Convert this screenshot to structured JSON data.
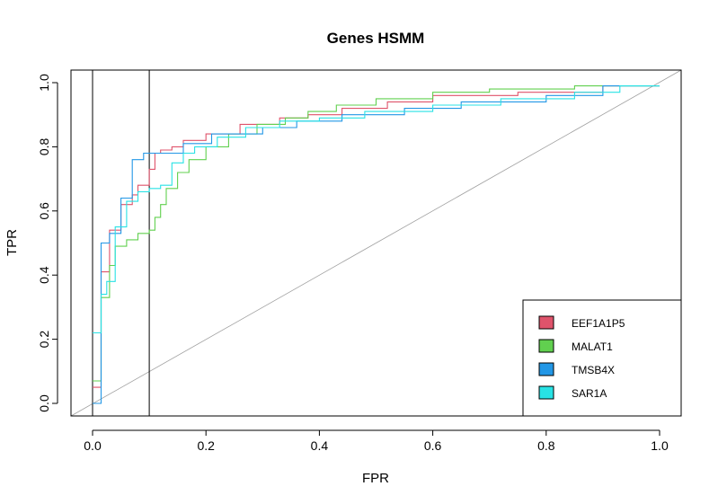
{
  "chart_data": {
    "type": "line",
    "title": "Genes HSMM",
    "xlabel": "FPR",
    "ylabel": "TPR",
    "xlim": [
      0,
      1
    ],
    "ylim": [
      0,
      1
    ],
    "x_ticks": [
      "0.0",
      "0.2",
      "0.4",
      "0.6",
      "0.8",
      "1.0"
    ],
    "y_ticks": [
      "0.0",
      "0.2",
      "0.4",
      "0.6",
      "0.8",
      "1.0"
    ],
    "reference_diagonal": true,
    "vertical_lines_x": [
      0.0,
      0.1
    ],
    "grid": false,
    "legend_position": "bottom-right",
    "series": [
      {
        "name": "EEF1A1P5",
        "color": "#DF536B",
        "points": [
          [
            0,
            0.05
          ],
          [
            0.015,
            0.05
          ],
          [
            0.015,
            0.41
          ],
          [
            0.03,
            0.41
          ],
          [
            0.03,
            0.54
          ],
          [
            0.05,
            0.54
          ],
          [
            0.05,
            0.62
          ],
          [
            0.07,
            0.62
          ],
          [
            0.07,
            0.65
          ],
          [
            0.08,
            0.65
          ],
          [
            0.08,
            0.68
          ],
          [
            0.1,
            0.68
          ],
          [
            0.1,
            0.73
          ],
          [
            0.11,
            0.73
          ],
          [
            0.11,
            0.78
          ],
          [
            0.12,
            0.78
          ],
          [
            0.12,
            0.79
          ],
          [
            0.14,
            0.79
          ],
          [
            0.14,
            0.8
          ],
          [
            0.16,
            0.8
          ],
          [
            0.16,
            0.82
          ],
          [
            0.2,
            0.82
          ],
          [
            0.2,
            0.84
          ],
          [
            0.26,
            0.84
          ],
          [
            0.26,
            0.87
          ],
          [
            0.33,
            0.87
          ],
          [
            0.33,
            0.89
          ],
          [
            0.38,
            0.89
          ],
          [
            0.38,
            0.9
          ],
          [
            0.44,
            0.9
          ],
          [
            0.44,
            0.92
          ],
          [
            0.52,
            0.92
          ],
          [
            0.52,
            0.94
          ],
          [
            0.6,
            0.94
          ],
          [
            0.6,
            0.96
          ],
          [
            0.75,
            0.96
          ],
          [
            0.75,
            0.97
          ],
          [
            0.9,
            0.97
          ],
          [
            0.9,
            0.99
          ],
          [
            1,
            0.99
          ]
        ]
      },
      {
        "name": "MALAT1",
        "color": "#61D04F",
        "points": [
          [
            0,
            0.07
          ],
          [
            0.015,
            0.07
          ],
          [
            0.015,
            0.33
          ],
          [
            0.03,
            0.33
          ],
          [
            0.03,
            0.43
          ],
          [
            0.04,
            0.43
          ],
          [
            0.04,
            0.49
          ],
          [
            0.06,
            0.49
          ],
          [
            0.06,
            0.51
          ],
          [
            0.08,
            0.51
          ],
          [
            0.08,
            0.53
          ],
          [
            0.1,
            0.53
          ],
          [
            0.1,
            0.54
          ],
          [
            0.11,
            0.54
          ],
          [
            0.11,
            0.58
          ],
          [
            0.12,
            0.58
          ],
          [
            0.12,
            0.62
          ],
          [
            0.13,
            0.62
          ],
          [
            0.13,
            0.67
          ],
          [
            0.15,
            0.67
          ],
          [
            0.15,
            0.72
          ],
          [
            0.17,
            0.72
          ],
          [
            0.17,
            0.76
          ],
          [
            0.2,
            0.76
          ],
          [
            0.2,
            0.8
          ],
          [
            0.24,
            0.8
          ],
          [
            0.24,
            0.84
          ],
          [
            0.29,
            0.84
          ],
          [
            0.29,
            0.87
          ],
          [
            0.34,
            0.87
          ],
          [
            0.34,
            0.89
          ],
          [
            0.38,
            0.89
          ],
          [
            0.38,
            0.91
          ],
          [
            0.43,
            0.91
          ],
          [
            0.43,
            0.93
          ],
          [
            0.5,
            0.93
          ],
          [
            0.5,
            0.95
          ],
          [
            0.6,
            0.95
          ],
          [
            0.6,
            0.97
          ],
          [
            0.7,
            0.97
          ],
          [
            0.7,
            0.98
          ],
          [
            0.85,
            0.98
          ],
          [
            0.85,
            0.99
          ],
          [
            1,
            0.99
          ]
        ]
      },
      {
        "name": "TMSB4X",
        "color": "#2297E6",
        "points": [
          [
            0,
            0
          ],
          [
            0.015,
            0
          ],
          [
            0.015,
            0.5
          ],
          [
            0.03,
            0.5
          ],
          [
            0.03,
            0.53
          ],
          [
            0.05,
            0.53
          ],
          [
            0.05,
            0.64
          ],
          [
            0.07,
            0.64
          ],
          [
            0.07,
            0.76
          ],
          [
            0.09,
            0.76
          ],
          [
            0.09,
            0.78
          ],
          [
            0.16,
            0.78
          ],
          [
            0.16,
            0.81
          ],
          [
            0.21,
            0.81
          ],
          [
            0.21,
            0.84
          ],
          [
            0.3,
            0.84
          ],
          [
            0.3,
            0.86
          ],
          [
            0.36,
            0.86
          ],
          [
            0.36,
            0.88
          ],
          [
            0.44,
            0.88
          ],
          [
            0.44,
            0.9
          ],
          [
            0.55,
            0.9
          ],
          [
            0.55,
            0.92
          ],
          [
            0.65,
            0.92
          ],
          [
            0.65,
            0.94
          ],
          [
            0.8,
            0.94
          ],
          [
            0.8,
            0.96
          ],
          [
            0.9,
            0.96
          ],
          [
            0.9,
            0.99
          ],
          [
            1,
            0.99
          ]
        ]
      },
      {
        "name": "SAR1A",
        "color": "#28E2E5",
        "points": [
          [
            0,
            0.22
          ],
          [
            0.015,
            0.22
          ],
          [
            0.015,
            0.34
          ],
          [
            0.025,
            0.34
          ],
          [
            0.025,
            0.38
          ],
          [
            0.04,
            0.38
          ],
          [
            0.04,
            0.55
          ],
          [
            0.06,
            0.55
          ],
          [
            0.06,
            0.63
          ],
          [
            0.08,
            0.63
          ],
          [
            0.08,
            0.66
          ],
          [
            0.1,
            0.66
          ],
          [
            0.1,
            0.67
          ],
          [
            0.12,
            0.67
          ],
          [
            0.12,
            0.68
          ],
          [
            0.14,
            0.68
          ],
          [
            0.14,
            0.75
          ],
          [
            0.16,
            0.75
          ],
          [
            0.16,
            0.78
          ],
          [
            0.18,
            0.78
          ],
          [
            0.18,
            0.8
          ],
          [
            0.22,
            0.8
          ],
          [
            0.22,
            0.83
          ],
          [
            0.27,
            0.83
          ],
          [
            0.27,
            0.86
          ],
          [
            0.33,
            0.86
          ],
          [
            0.33,
            0.88
          ],
          [
            0.4,
            0.88
          ],
          [
            0.4,
            0.89
          ],
          [
            0.48,
            0.89
          ],
          [
            0.48,
            0.91
          ],
          [
            0.6,
            0.91
          ],
          [
            0.6,
            0.93
          ],
          [
            0.72,
            0.93
          ],
          [
            0.72,
            0.95
          ],
          [
            0.85,
            0.95
          ],
          [
            0.85,
            0.97
          ],
          [
            0.93,
            0.97
          ],
          [
            0.93,
            0.99
          ],
          [
            1,
            0.99
          ]
        ]
      }
    ]
  }
}
